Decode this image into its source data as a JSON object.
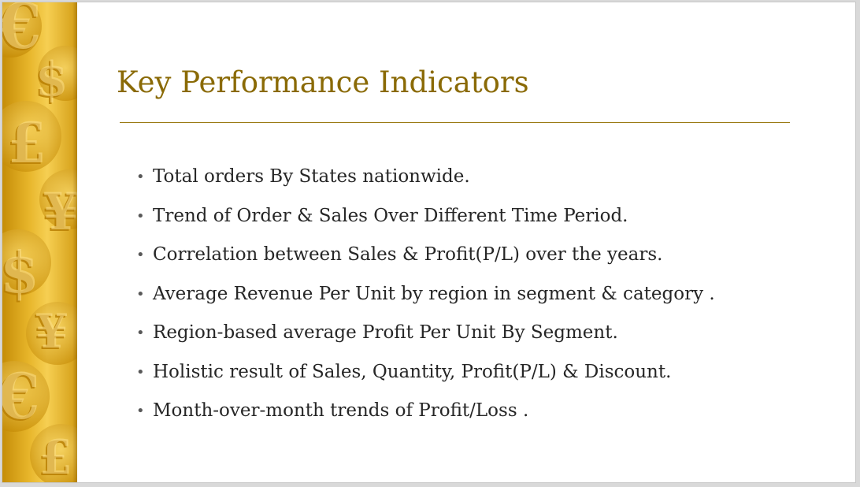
{
  "slide": {
    "title": "Key Performance Indicators",
    "bullets": [
      "Total orders By States nationwide.",
      "Trend of Order & Sales Over Different Time Period.",
      "Correlation between Sales & Profit(P/L) over the years.",
      "Average Revenue Per Unit by region in segment & category .",
      "Region-based average Profit Per Unit By Segment.",
      "Holistic result of Sales, Quantity, Profit(P/L) & Discount.",
      "Month-over-month trends of Profit/Loss ."
    ],
    "bullet_glyph": "•",
    "decoration": "gold-currency-symbols-image"
  },
  "colors": {
    "title": "#8a6a06",
    "rule": "#9a7a14",
    "text": "#262626",
    "gold": "#e7b52a"
  }
}
